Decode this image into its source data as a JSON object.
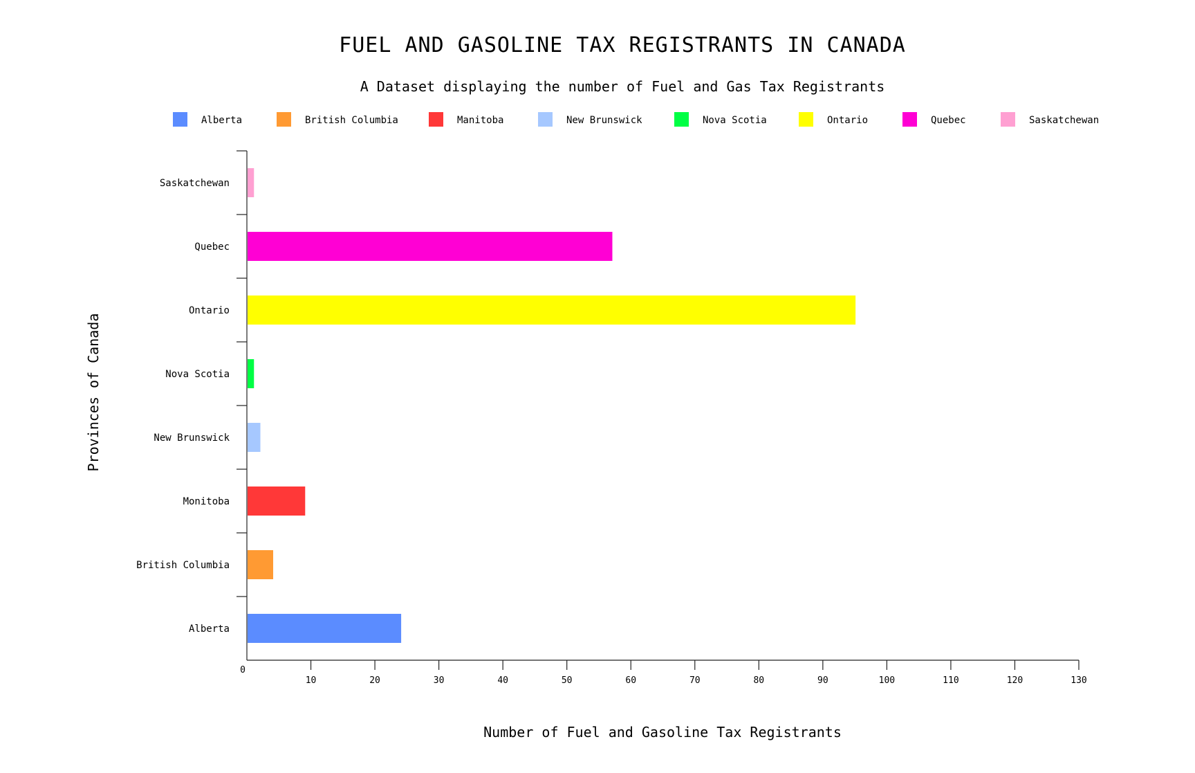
{
  "chart_data": {
    "type": "bar",
    "orientation": "horizontal",
    "title": "FUEL AND GASOLINE TAX REGISTRANTS IN CANADA",
    "subtitle": "A Dataset displaying the number of Fuel and Gas Tax Registrants",
    "xlabel": "Number of Fuel and Gasoline Tax Registrants",
    "ylabel": "Provinces of Canada",
    "xlim": [
      0,
      130
    ],
    "xticks": [
      0,
      10,
      20,
      30,
      40,
      50,
      60,
      70,
      80,
      90,
      100,
      110,
      120,
      130
    ],
    "legend_position": "top",
    "grid": false,
    "legend": [
      {
        "label": "Alberta",
        "color": "#5b8cff"
      },
      {
        "label": "British Columbia",
        "color": "#ff9a33"
      },
      {
        "label": "Manitoba",
        "color": "#ff3838"
      },
      {
        "label": "New Brunswick",
        "color": "#a6c8ff"
      },
      {
        "label": "Nova Scotia",
        "color": "#00ff44"
      },
      {
        "label": "Ontario",
        "color": "#ffff00"
      },
      {
        "label": "Quebec",
        "color": "#ff00d4"
      },
      {
        "label": "Saskatchewan",
        "color": "#ffa0d2"
      }
    ],
    "categories": [
      "Alberta",
      "British Columbia",
      "Monitoba",
      "New Brunswick",
      "Nova Scotia",
      "Ontario",
      "Quebec",
      "Saskatchewan"
    ],
    "values": [
      24,
      4,
      9,
      2,
      1,
      95,
      57,
      1
    ],
    "colors": [
      "#5b8cff",
      "#ff9a33",
      "#ff3838",
      "#a6c8ff",
      "#00ff44",
      "#ffff00",
      "#ff00d4",
      "#ffa0d2"
    ]
  }
}
